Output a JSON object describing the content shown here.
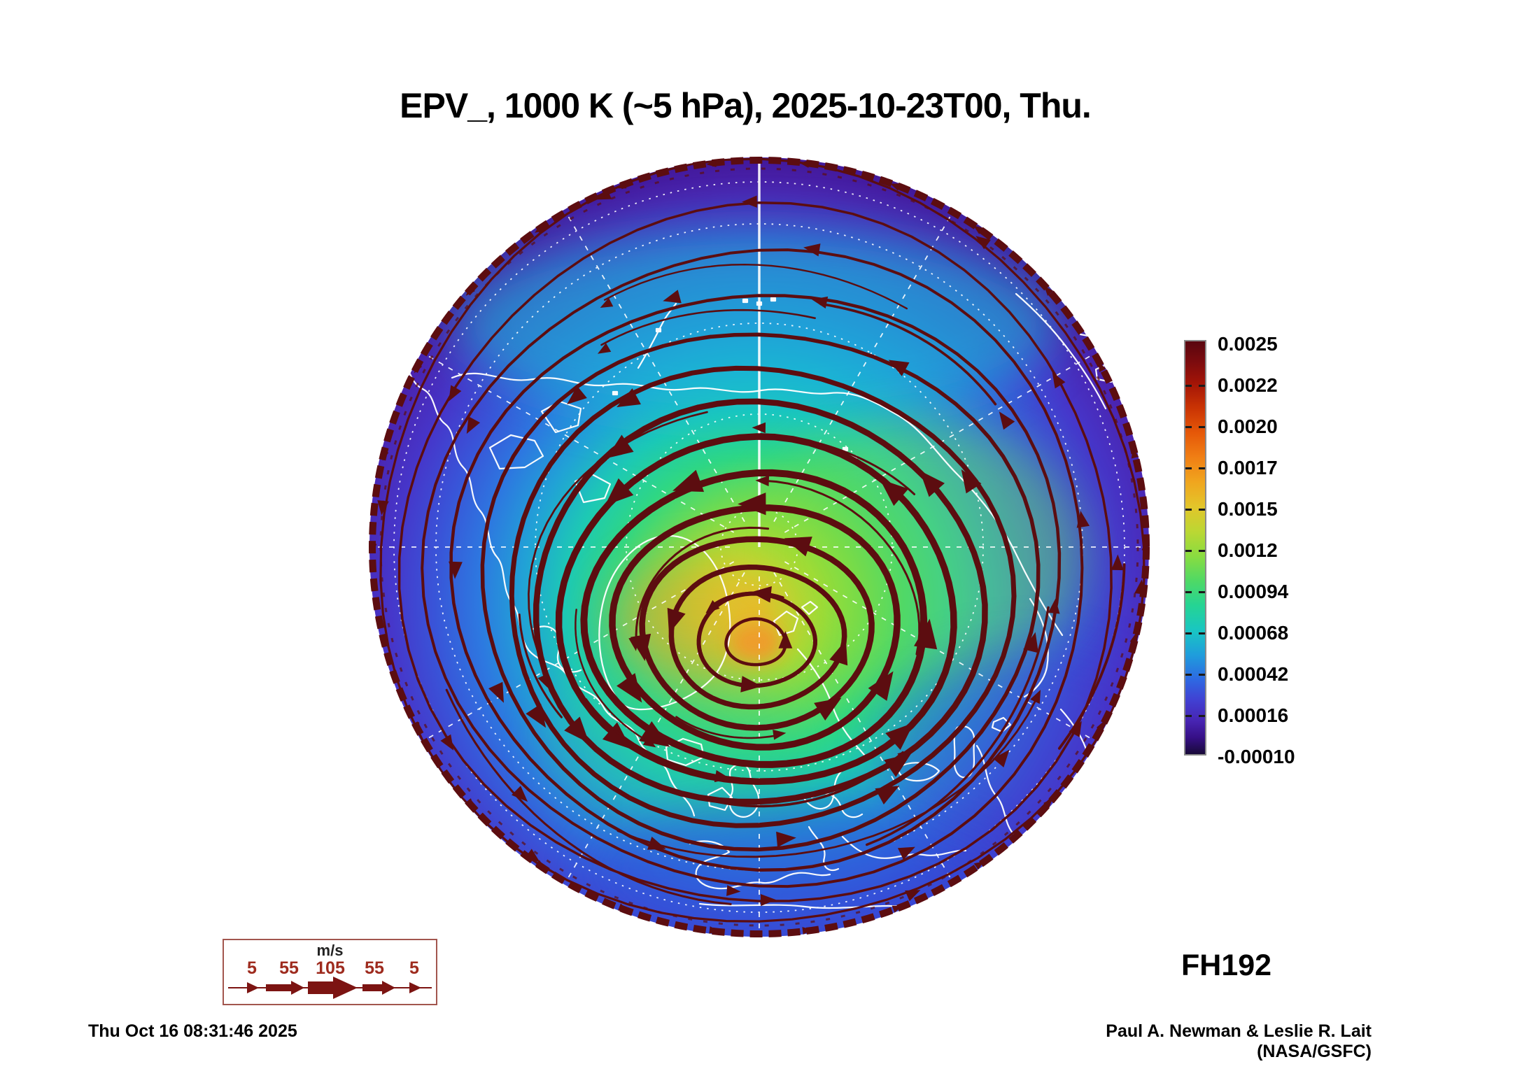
{
  "title": "EPV_, 1000 K (~5 hPa), 2025-10-23T00, Thu.",
  "forecast_hour_label": "FH192",
  "generated_timestamp": "Thu Oct 16 08:31:46 2025",
  "credit": "Paul A. Newman & Leslie R. Lait (NASA/GSFC)",
  "colorbar": {
    "labels": [
      "0.0025",
      "0.0022",
      "0.0020",
      "0.0017",
      "0.0015",
      "0.0012",
      "0.00094",
      "0.00068",
      "0.00042",
      "0.00016",
      "-0.00010"
    ],
    "gradient": [
      {
        "p": "0%",
        "c": "#59060f"
      },
      {
        "p": "5%",
        "c": "#7c0b0e"
      },
      {
        "p": "10%",
        "c": "#a21407"
      },
      {
        "p": "16%",
        "c": "#c93304"
      },
      {
        "p": "22%",
        "c": "#e55708"
      },
      {
        "p": "28%",
        "c": "#f07e14"
      },
      {
        "p": "34%",
        "c": "#f0a51e"
      },
      {
        "p": "40%",
        "c": "#e3c52a"
      },
      {
        "p": "46%",
        "c": "#bcd733"
      },
      {
        "p": "52%",
        "c": "#8adc40"
      },
      {
        "p": "58%",
        "c": "#4fd965"
      },
      {
        "p": "64%",
        "c": "#25d494"
      },
      {
        "p": "70%",
        "c": "#19c6c2"
      },
      {
        "p": "76%",
        "c": "#1f9ddc"
      },
      {
        "p": "82%",
        "c": "#2e68e2"
      },
      {
        "p": "87%",
        "c": "#4140d2"
      },
      {
        "p": "92%",
        "c": "#4724b2"
      },
      {
        "p": "96%",
        "c": "#360f86"
      },
      {
        "p": "100%",
        "c": "#180a38"
      }
    ]
  },
  "wind_legend": {
    "unit": "m/s",
    "values": [
      "5",
      "55",
      "105",
      "55",
      "5"
    ],
    "number_color": "#9e2b1e",
    "arrow_color": "#7c1412",
    "box_border_color": "#a2564e"
  },
  "globe": {
    "streamline_color": "#5c0d10",
    "coastline_color": "#ffffff",
    "graticule_color": "#ffffff",
    "field_gradient": [
      {
        "p": "0%",
        "c": "#e9ce2a"
      },
      {
        "p": "6%",
        "c": "#cfdc2e"
      },
      {
        "p": "13%",
        "c": "#a8dd36"
      },
      {
        "p": "21%",
        "c": "#6edb52"
      },
      {
        "p": "30%",
        "c": "#2fd783"
      },
      {
        "p": "39%",
        "c": "#1dc9b4"
      },
      {
        "p": "48%",
        "c": "#21a2d6"
      },
      {
        "p": "57%",
        "c": "#2d78e0"
      },
      {
        "p": "66%",
        "c": "#3954d8"
      },
      {
        "p": "75%",
        "c": "#4636ca"
      },
      {
        "p": "84%",
        "c": "#4a24b0"
      },
      {
        "p": "93%",
        "c": "#3f1492"
      },
      {
        "p": "100%",
        "c": "#3a1188"
      }
    ]
  },
  "chart_data": {
    "type": "heatmap",
    "title": "EPV_, 1000 K (~5 hPa), 2025-10-23T00, Thu.",
    "variable": "EPV (Ertel potential vorticity)",
    "level": "1000 K (~5 hPa)",
    "valid_time": "2025-10-23T00",
    "valid_day": "Thu.",
    "forecast_hour": 192,
    "projection": "Northern Hemisphere polar stereographic",
    "colorbar_levels": [
      0.0025,
      0.0022,
      0.002,
      0.0017,
      0.0015,
      0.0012,
      0.00094,
      0.00068,
      0.00042,
      0.00016,
      -0.0001
    ],
    "colorbar_orientation": "vertical-right",
    "wind_speed_scale_ms": [
      5,
      55,
      105,
      55,
      5
    ],
    "overlays": [
      "wind streamlines (m/s)",
      "coastlines",
      "latitude/longitude graticule"
    ],
    "field_pattern": "Cyclonic polar vortex centered near the pole: high EPV core (yellow-orange) over the Greenland/Atlantic sector, concentric dark-red streamlines, EPV decreasing to blue/purple toward the equatorward edge",
    "legend_position": "right"
  }
}
